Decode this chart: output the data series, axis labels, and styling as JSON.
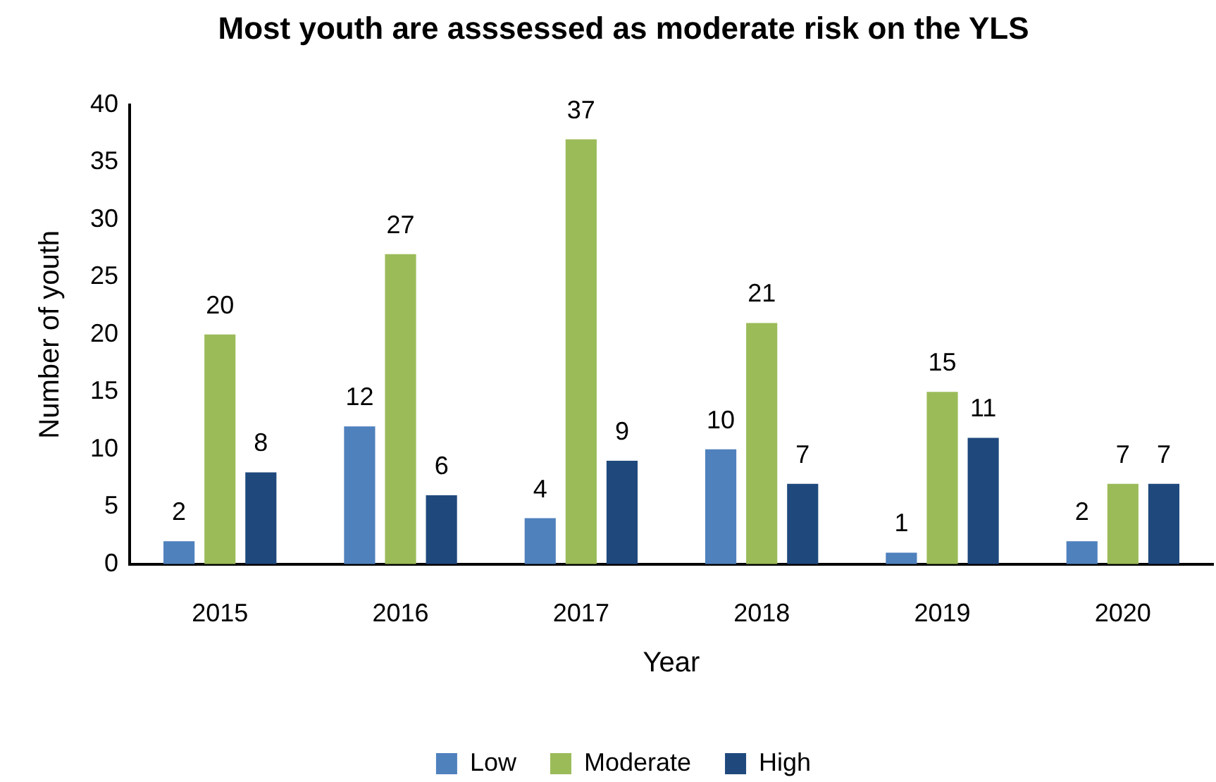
{
  "chart_data": {
    "type": "bar",
    "title": "Most youth are asssessed as moderate risk on the YLS",
    "xlabel": "Year",
    "ylabel": "Number of youth",
    "categories": [
      "2015",
      "2016",
      "2017",
      "2018",
      "2019",
      "2020"
    ],
    "series": [
      {
        "name": "Low",
        "color": "#4f81bd",
        "values": [
          2,
          12,
          4,
          10,
          1,
          2
        ]
      },
      {
        "name": "Moderate",
        "color": "#9bbb59",
        "values": [
          20,
          27,
          37,
          21,
          15,
          7
        ]
      },
      {
        "name": "High",
        "color": "#1f497d",
        "values": [
          8,
          6,
          9,
          7,
          11,
          7
        ]
      }
    ],
    "ylim": [
      0,
      40
    ],
    "yticks": [
      0,
      5,
      10,
      15,
      20,
      25,
      30,
      35,
      40
    ],
    "grid": false,
    "legend": "bottom",
    "data_labels": true
  }
}
